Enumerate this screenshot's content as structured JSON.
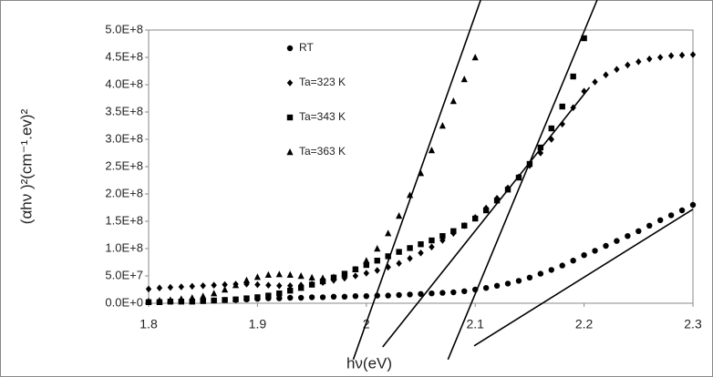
{
  "chart_data": {
    "type": "scatter",
    "xlabel": "hν(eV)",
    "ylabel": "(αhν )²(cm⁻¹.ev)²",
    "xlim": [
      1.8,
      2.3
    ],
    "ylim": [
      0,
      500000000.0
    ],
    "xticks": [
      1.8,
      1.9,
      2,
      2.1,
      2.2,
      2.3
    ],
    "yticks": [
      {
        "value": 0,
        "label": "0.0E+0"
      },
      {
        "value": 50000000.0,
        "label": "5.0E+7"
      },
      {
        "value": 100000000.0,
        "label": "1.0E+8"
      },
      {
        "value": 150000000.0,
        "label": "1.5E+8"
      },
      {
        "value": 200000000.0,
        "label": "2.0E+8"
      },
      {
        "value": 250000000.0,
        "label": "2.5E+8"
      },
      {
        "value": 300000000.0,
        "label": "3.0E+8"
      },
      {
        "value": 350000000.0,
        "label": "3.5E+8"
      },
      {
        "value": 400000000.0,
        "label": "4.0E+8"
      },
      {
        "value": 450000000.0,
        "label": "4.5E+8"
      },
      {
        "value": 500000000.0,
        "label": "5.0E+8"
      }
    ],
    "grid": false,
    "legend": "top-left",
    "series": [
      {
        "name": "RT",
        "marker": "circle",
        "color": "#000000",
        "x": [
          1.8,
          1.81,
          1.82,
          1.83,
          1.84,
          1.85,
          1.86,
          1.87,
          1.88,
          1.89,
          1.9,
          1.91,
          1.92,
          1.93,
          1.94,
          1.95,
          1.96,
          1.97,
          1.98,
          1.99,
          2,
          2.01,
          2.02,
          2.03,
          2.04,
          2.05,
          2.06,
          2.07,
          2.08,
          2.09,
          2.1,
          2.11,
          2.12,
          2.13,
          2.14,
          2.15,
          2.16,
          2.17,
          2.18,
          2.19,
          2.2,
          2.21,
          2.22,
          2.23,
          2.24,
          2.25,
          2.26,
          2.27,
          2.28,
          2.29,
          2.3
        ],
        "values": [
          2000000.0,
          3000000.0,
          3000000.0,
          4000000.0,
          4000000.0,
          5000000.0,
          5000000.0,
          6000000.0,
          6000000.0,
          7000000.0,
          8000000.0,
          9000000.0,
          9000000.0,
          10000000.0,
          10000000.0,
          11000000.0,
          11000000.0,
          12000000.0,
          12000000.0,
          13000000.0,
          13000000.0,
          14000000.0,
          14000000.0,
          15000000.0,
          16000000.0,
          17000000.0,
          18000000.0,
          19000000.0,
          20000000.0,
          22000000.0,
          25000000.0,
          28000000.0,
          32000000.0,
          36000000.0,
          41000000.0,
          47000000.0,
          54000000.0,
          61000000.0,
          69000000.0,
          78000000.0,
          88000000.0,
          96000000.0,
          105000000.0,
          114000000.0,
          123000000.0,
          132000000.0,
          142000000.0,
          152000000.0,
          161000000.0,
          170000000.0,
          180000000.0
        ]
      },
      {
        "name": "Ta=323 K",
        "marker": "diamond",
        "color": "#000000",
        "x": [
          1.8,
          1.81,
          1.82,
          1.83,
          1.84,
          1.85,
          1.86,
          1.87,
          1.88,
          1.89,
          1.9,
          1.91,
          1.92,
          1.93,
          1.94,
          1.95,
          1.96,
          1.97,
          1.98,
          1.99,
          2,
          2.01,
          2.02,
          2.03,
          2.04,
          2.05,
          2.06,
          2.07,
          2.08,
          2.09,
          2.1,
          2.11,
          2.12,
          2.13,
          2.14,
          2.15,
          2.16,
          2.17,
          2.18,
          2.19,
          2.2,
          2.21,
          2.22,
          2.23,
          2.24,
          2.25,
          2.26,
          2.27,
          2.28,
          2.29,
          2.3
        ],
        "values": [
          26000000.0,
          28000000.0,
          29000000.0,
          30000000.0,
          31000000.0,
          32000000.0,
          33000000.0,
          34000000.0,
          35000000.0,
          35000000.0,
          34000000.0,
          33000000.0,
          32000000.0,
          32000000.0,
          33000000.0,
          35000000.0,
          38000000.0,
          42000000.0,
          46000000.0,
          50000000.0,
          55000000.0,
          60000000.0,
          66000000.0,
          73000000.0,
          82000000.0,
          92000000.0,
          103000000.0,
          115000000.0,
          128000000.0,
          142000000.0,
          157000000.0,
          174000000.0,
          192000000.0,
          211000000.0,
          231000000.0,
          252000000.0,
          275000000.0,
          300000000.0,
          328000000.0,
          358000000.0,
          388000000.0,
          405000000.0,
          418000000.0,
          428000000.0,
          436000000.0,
          442000000.0,
          447000000.0,
          450000000.0,
          453000000.0,
          454000000.0,
          455000000.0
        ]
      },
      {
        "name": "Ta=343 K",
        "marker": "square",
        "color": "#000000",
        "x": [
          1.8,
          1.81,
          1.82,
          1.83,
          1.84,
          1.85,
          1.86,
          1.87,
          1.88,
          1.89,
          1.9,
          1.91,
          1.92,
          1.93,
          1.94,
          1.95,
          1.96,
          1.97,
          1.98,
          1.99,
          2,
          2.01,
          2.02,
          2.03,
          2.04,
          2.05,
          2.06,
          2.07,
          2.08,
          2.09,
          2.1,
          2.11,
          2.12,
          2.13,
          2.14,
          2.15,
          2.16,
          2.17,
          2.18,
          2.19,
          2.2
        ],
        "values": [
          2000000.0,
          2000000.0,
          3000000.0,
          3000000.0,
          3000000.0,
          4000000.0,
          5000000.0,
          6000000.0,
          7000000.0,
          9000000.0,
          11000000.0,
          14000000.0,
          18000000.0,
          23000000.0,
          28000000.0,
          34000000.0,
          40000000.0,
          47000000.0,
          54000000.0,
          62000000.0,
          70000000.0,
          78000000.0,
          86000000.0,
          94000000.0,
          101000000.0,
          108000000.0,
          115000000.0,
          123000000.0,
          132000000.0,
          142000000.0,
          155000000.0,
          170000000.0,
          188000000.0,
          208000000.0,
          230000000.0,
          255000000.0,
          285000000.0,
          320000000.0,
          360000000.0,
          415000000.0,
          485000000.0
        ]
      },
      {
        "name": "Ta=363 K",
        "marker": "triangle",
        "color": "#000000",
        "x": [
          1.8,
          1.81,
          1.82,
          1.83,
          1.84,
          1.85,
          1.86,
          1.87,
          1.88,
          1.89,
          1.9,
          1.91,
          1.92,
          1.93,
          1.94,
          1.95,
          1.96,
          1.97,
          1.98,
          1.99,
          2,
          2.01,
          2.02,
          2.03,
          2.04,
          2.05,
          2.06,
          2.07,
          2.08,
          2.09,
          2.1
        ],
        "values": [
          4000000.0,
          5000000.0,
          6000000.0,
          8000000.0,
          10000000.0,
          13000000.0,
          18000000.0,
          25000000.0,
          33000000.0,
          42000000.0,
          48000000.0,
          52000000.0,
          53000000.0,
          52000000.0,
          50000000.0,
          47000000.0,
          46000000.0,
          48000000.0,
          53000000.0,
          62000000.0,
          78000000.0,
          100000000.0,
          128000000.0,
          160000000.0,
          198000000.0,
          238000000.0,
          280000000.0,
          325000000.0,
          370000000.0,
          410000000.0,
          450000000.0
        ]
      }
    ],
    "fit_lines": [
      {
        "x": [
          1.988,
          2.105
        ],
        "y": [
          -103000000.0,
          555000000.0
        ]
      },
      {
        "x": [
          2.075,
          2.212
        ],
        "y": [
          -103000000.0,
          555000000.0
        ]
      },
      {
        "x": [
          2.015,
          2.205
        ],
        "y": [
          -80000000.0,
          395000000.0
        ]
      },
      {
        "x": [
          2.099,
          2.3
        ],
        "y": [
          -78000000.0,
          172000000.0
        ]
      }
    ]
  }
}
